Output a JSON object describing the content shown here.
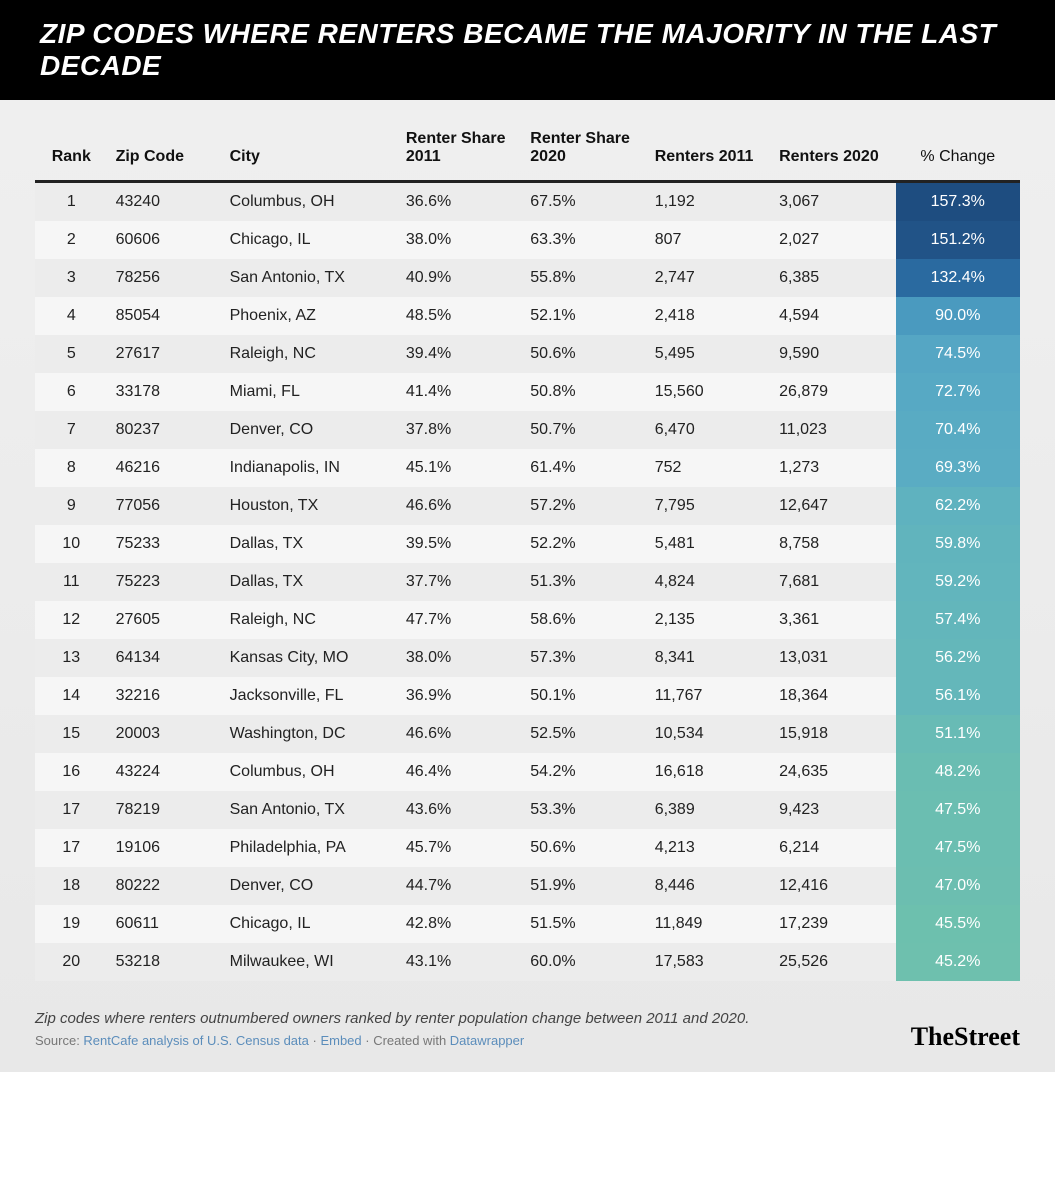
{
  "title": "ZIP CODES WHERE RENTERS BECAME THE MAJORITY IN THE LAST DECADE",
  "columns": [
    "Rank",
    "Zip Code",
    "City",
    "Renter Share 2011",
    "Renter Share 2020",
    "Renters 2011",
    "Renters 2020",
    "% Change"
  ],
  "rows": [
    {
      "rank": "1",
      "zip": "43240",
      "city": "Columbus, OH",
      "s11": "36.6%",
      "s20": "67.5%",
      "r11": "1,192",
      "r20": "3,067",
      "chg": "157.3%",
      "chg_bg": "#1e4d80"
    },
    {
      "rank": "2",
      "zip": "60606",
      "city": "Chicago, IL",
      "s11": "38.0%",
      "s20": "63.3%",
      "r11": "807",
      "r20": "2,027",
      "chg": "151.2%",
      "chg_bg": "#215387"
    },
    {
      "rank": "3",
      "zip": "78256",
      "city": "San Antonio, TX",
      "s11": "40.9%",
      "s20": "55.8%",
      "r11": "2,747",
      "r20": "6,385",
      "chg": "132.4%",
      "chg_bg": "#2a6aa0"
    },
    {
      "rank": "4",
      "zip": "85054",
      "city": "Phoenix, AZ",
      "s11": "48.5%",
      "s20": "52.1%",
      "r11": "2,418",
      "r20": "4,594",
      "chg": "90.0%",
      "chg_bg": "#4a9abf"
    },
    {
      "rank": "5",
      "zip": "27617",
      "city": "Raleigh, NC",
      "s11": "39.4%",
      "s20": "50.6%",
      "r11": "5,495",
      "r20": "9,590",
      "chg": "74.5%",
      "chg_bg": "#55a6c4"
    },
    {
      "rank": "6",
      "zip": "33178",
      "city": "Miami, FL",
      "s11": "41.4%",
      "s20": "50.8%",
      "r11": "15,560",
      "r20": "26,879",
      "chg": "72.7%",
      "chg_bg": "#57a9c4"
    },
    {
      "rank": "7",
      "zip": "80237",
      "city": "Denver, CO",
      "s11": "37.8%",
      "s20": "50.7%",
      "r11": "6,470",
      "r20": "11,023",
      "chg": "70.4%",
      "chg_bg": "#59abc3"
    },
    {
      "rank": "8",
      "zip": "46216",
      "city": "Indianapolis, IN",
      "s11": "45.1%",
      "s20": "61.4%",
      "r11": "752",
      "r20": "1,273",
      "chg": "69.3%",
      "chg_bg": "#5aacc3"
    },
    {
      "rank": "9",
      "zip": "77056",
      "city": "Houston, TX",
      "s11": "46.6%",
      "s20": "57.2%",
      "r11": "7,795",
      "r20": "12,647",
      "chg": "62.2%",
      "chg_bg": "#5fb2bf"
    },
    {
      "rank": "10",
      "zip": "75233",
      "city": "Dallas, TX",
      "s11": "39.5%",
      "s20": "52.2%",
      "r11": "5,481",
      "r20": "8,758",
      "chg": "59.8%",
      "chg_bg": "#61b4bd"
    },
    {
      "rank": "11",
      "zip": "75223",
      "city": "Dallas, TX",
      "s11": "37.7%",
      "s20": "51.3%",
      "r11": "4,824",
      "r20": "7,681",
      "chg": "59.2%",
      "chg_bg": "#62b5bd"
    },
    {
      "rank": "12",
      "zip": "27605",
      "city": "Raleigh, NC",
      "s11": "47.7%",
      "s20": "58.6%",
      "r11": "2,135",
      "r20": "3,361",
      "chg": "57.4%",
      "chg_bg": "#63b6bb"
    },
    {
      "rank": "13",
      "zip": "64134",
      "city": "Kansas City, MO",
      "s11": "38.0%",
      "s20": "57.3%",
      "r11": "8,341",
      "r20": "13,031",
      "chg": "56.2%",
      "chg_bg": "#64b7ba"
    },
    {
      "rank": "14",
      "zip": "32216",
      "city": "Jacksonville, FL",
      "s11": "36.9%",
      "s20": "50.1%",
      "r11": "11,767",
      "r20": "18,364",
      "chg": "56.1%",
      "chg_bg": "#64b7ba"
    },
    {
      "rank": "15",
      "zip": "20003",
      "city": "Washington, DC",
      "s11": "46.6%",
      "s20": "52.5%",
      "r11": "10,534",
      "r20": "15,918",
      "chg": "51.1%",
      "chg_bg": "#68bbb5"
    },
    {
      "rank": "16",
      "zip": "43224",
      "city": "Columbus, OH",
      "s11": "46.4%",
      "s20": "54.2%",
      "r11": "16,618",
      "r20": "24,635",
      "chg": "48.2%",
      "chg_bg": "#6abdb2"
    },
    {
      "rank": "17",
      "zip": "78219",
      "city": "San Antonio, TX",
      "s11": "43.6%",
      "s20": "53.3%",
      "r11": "6,389",
      "r20": "9,423",
      "chg": "47.5%",
      "chg_bg": "#6bbeb1"
    },
    {
      "rank": "17",
      "zip": "19106",
      "city": "Philadelphia, PA",
      "s11": "45.7%",
      "s20": "50.6%",
      "r11": "4,213",
      "r20": "6,214",
      "chg": "47.5%",
      "chg_bg": "#6bbeb1"
    },
    {
      "rank": "18",
      "zip": "80222",
      "city": "Denver, CO",
      "s11": "44.7%",
      "s20": "51.9%",
      "r11": "8,446",
      "r20": "12,416",
      "chg": "47.0%",
      "chg_bg": "#6cbeb0"
    },
    {
      "rank": "19",
      "zip": "60611",
      "city": "Chicago, IL",
      "s11": "42.8%",
      "s20": "51.5%",
      "r11": "11,849",
      "r20": "17,239",
      "chg": "45.5%",
      "chg_bg": "#6dc0ae"
    },
    {
      "rank": "20",
      "zip": "53218",
      "city": "Milwaukee, WI",
      "s11": "43.1%",
      "s20": "60.0%",
      "r11": "17,583",
      "r20": "25,526",
      "chg": "45.2%",
      "chg_bg": "#6ec0ae"
    }
  ],
  "footer": {
    "description": "Zip codes where renters outnumbered owners ranked by renter population change between 2011 and 2020.",
    "source_prefix": "Source: ",
    "source_link1": "RentCafe analysis of U.S. Census data",
    "sep": " · ",
    "source_link2": "Embed",
    "created_prefix": " · Created with ",
    "created_link": "Datawrapper",
    "brand": "TheStreet"
  }
}
